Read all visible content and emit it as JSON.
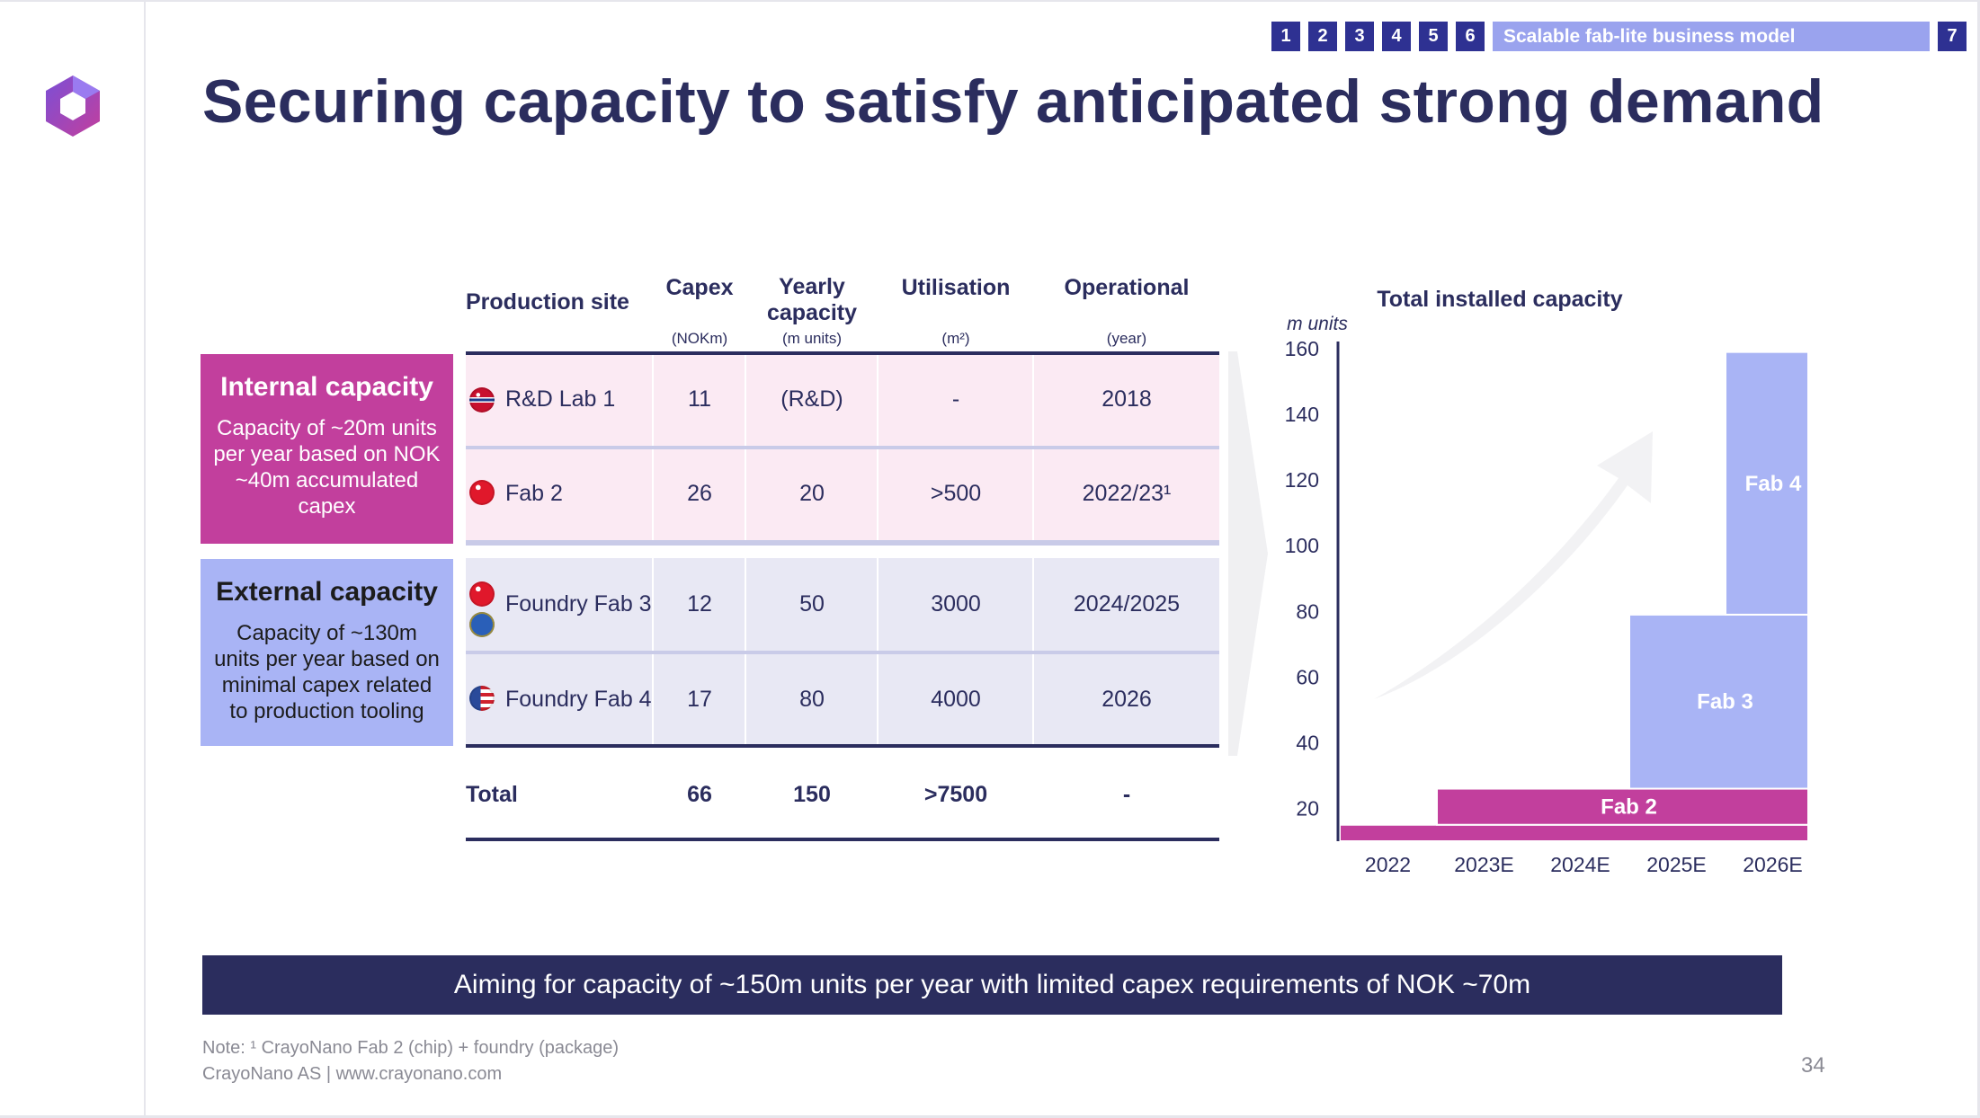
{
  "nav": {
    "sections": [
      "1",
      "2",
      "3",
      "4",
      "5",
      "6"
    ],
    "current_label": "Scalable fab-lite business model",
    "last": "7"
  },
  "title": "Securing capacity to satisfy anticipated strong demand",
  "table": {
    "headers": [
      {
        "label": "Production site",
        "sub": ""
      },
      {
        "label": "Capex",
        "sub": "(NOKm)"
      },
      {
        "label": "Yearly capacity",
        "sub": "(m units)"
      },
      {
        "label": "Utilisation",
        "sub": "(m²)"
      },
      {
        "label": "Operational",
        "sub": "(year)"
      }
    ],
    "groups": {
      "internal": {
        "title": "Internal capacity",
        "text": "Capacity of ~20m units per year based on NOK ~40m accumulated capex",
        "color": "#c23f9d"
      },
      "external": {
        "title": "External capacity",
        "text": "Capacity of ~130m units per year based on minimal capex related to production tooling",
        "color": "#a9b4f5"
      }
    },
    "rows": [
      {
        "site": "R&D Lab 1",
        "capex": "11",
        "capacity": "(R&D)",
        "utilisation": "-",
        "operational": "2018",
        "flags": [
          "norway-flag-icon"
        ]
      },
      {
        "site": "Fab 2",
        "capex": "26",
        "capacity": "20",
        "utilisation": ">500",
        "operational": "2022/23¹",
        "flags": [
          "taiwan-flag-icon"
        ]
      },
      {
        "site": "Foundry Fab 3",
        "capex": "12",
        "capacity": "50",
        "utilisation": "3000",
        "operational": "2024/2025",
        "flags": [
          "taiwan-flag-icon",
          "eu-flag-icon"
        ]
      },
      {
        "site": "Foundry Fab 4",
        "capex": "17",
        "capacity": "80",
        "utilisation": "4000",
        "operational": "2026",
        "flags": [
          "us-flag-icon"
        ]
      }
    ],
    "total": {
      "label": "Total",
      "capex": "66",
      "capacity": "150",
      "utilisation": ">7500",
      "operational": "-"
    }
  },
  "chart_data": {
    "type": "bar",
    "title": "Total installed capacity",
    "ylabel": "m units",
    "categories": [
      "2022",
      "2023E",
      "2024E",
      "2025E",
      "2026E"
    ],
    "y_ticks": [
      "20",
      "40",
      "60",
      "80",
      "100",
      "120",
      "140",
      "160"
    ],
    "ylim": [
      10,
      160
    ],
    "series": [
      {
        "name": "",
        "x_span": [
          "2022",
          "2026E"
        ],
        "from": 10,
        "to": 15,
        "color": "#c23f9d"
      },
      {
        "name": "Fab 2",
        "x_span": [
          "2023E",
          "2026E"
        ],
        "from": 15,
        "to": 26,
        "color": "#c23f9d"
      },
      {
        "name": "Fab 3",
        "x_span": [
          "2025E",
          "2026E"
        ],
        "from": 26,
        "to": 79,
        "color": "#a9b4f5"
      },
      {
        "name": "Fab 4",
        "x_span": [
          "2026E",
          "2026E"
        ],
        "from": 79,
        "to": 159,
        "color": "#a9b4f5"
      }
    ],
    "annotations": [
      "upward growth arrow"
    ]
  },
  "banner": "Aiming for capacity of ~150m units per year with limited capex requirements of NOK ~70m",
  "footer": {
    "note": "Note: ¹ CrayoNano Fab 2 (chip) + foundry (package)",
    "company": "CrayoNano AS | www.crayonano.com",
    "page": "34"
  },
  "colors": {
    "accent_magenta": "#c23f9d",
    "accent_lilac": "#a9b4f5",
    "navy": "#2b2d5e",
    "nav_blue": "#2e3192"
  }
}
